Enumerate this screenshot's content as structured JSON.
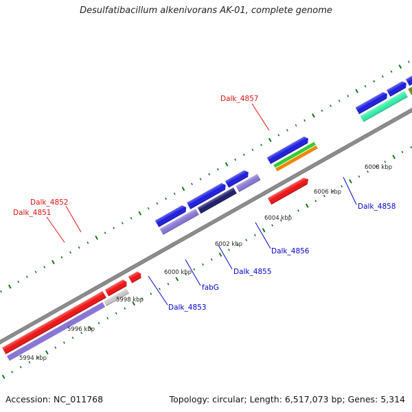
{
  "title": "Desulfatibacillum alkenivorans AK-01, complete genome",
  "footer": {
    "accession": "Accession: NC_011768",
    "summary": "Topology: circular; Length: 6,517,073 bp; Genes: 5,314"
  },
  "scale_labels": [
    "5994 kbp",
    "5996 kbp",
    "5998 kbp",
    "6000 kbp",
    "6002 kbp",
    "6004 kbp",
    "6006 kbp",
    "6008 kbp"
  ],
  "gene_labels": [
    {
      "text": "Dalk_4857",
      "color": "#e01010"
    },
    {
      "text": "Dalk_4852",
      "color": "#e01010"
    },
    {
      "text": "Dalk_4851",
      "color": "#e01010"
    },
    {
      "text": "Dalk_4858",
      "color": "#0000cc"
    },
    {
      "text": "Dalk_4856",
      "color": "#0000cc"
    },
    {
      "text": "Dalk_4855",
      "color": "#0000cc"
    },
    {
      "text": "fabG",
      "color": "#0000cc"
    },
    {
      "text": "Dalk_4853",
      "color": "#0000cc"
    }
  ],
  "colors": {
    "red_feature": "#ee1111",
    "blue_feature": "#1a1adf",
    "lavender_feature": "#8877d6",
    "gray_feature": "#c8c8c8",
    "aqua_feature": "#33eeaa",
    "green_feature": "#33cc33",
    "orange_feature": "#ee8800",
    "olive_feature": "#778833",
    "lime_feature": "#99ee33",
    "tick_green": "#117711",
    "backbone": "#8c8c8c"
  }
}
